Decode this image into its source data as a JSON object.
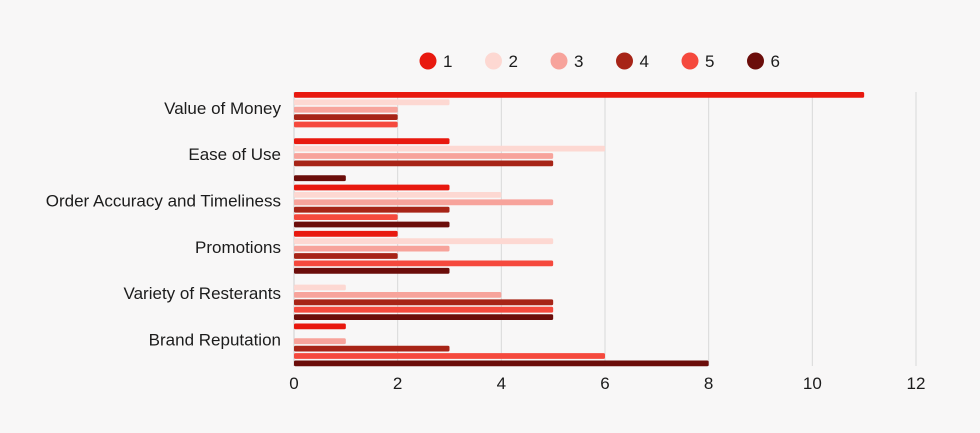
{
  "chart_data": {
    "type": "bar",
    "orientation": "horizontal",
    "title": "",
    "xlabel": "",
    "ylabel": "",
    "xlim": [
      0,
      12
    ],
    "x_ticks": [
      0,
      2,
      4,
      6,
      8,
      10,
      12
    ],
    "grid": true,
    "legend_position": "top",
    "categories": [
      "Value of Money",
      "Ease of Use",
      "Order Accuracy and Timeliness",
      "Promotions",
      "Variety of Resterants",
      "Brand Reputation"
    ],
    "series": [
      {
        "name": "1",
        "color": "#e8190f",
        "values": [
          11,
          3,
          3,
          2,
          0,
          1
        ]
      },
      {
        "name": "2",
        "color": "#fdd8d2",
        "values": [
          3,
          6,
          4,
          5,
          1,
          0
        ]
      },
      {
        "name": "3",
        "color": "#f7a39b",
        "values": [
          2,
          5,
          5,
          3,
          4,
          1
        ]
      },
      {
        "name": "4",
        "color": "#a72417",
        "values": [
          2,
          5,
          3,
          2,
          5,
          3
        ]
      },
      {
        "name": "5",
        "color": "#f5493d",
        "values": [
          2,
          0,
          2,
          5,
          5,
          6
        ]
      },
      {
        "name": "6",
        "color": "#6b0d0a",
        "values": [
          0,
          1,
          3,
          3,
          5,
          8
        ]
      }
    ]
  }
}
